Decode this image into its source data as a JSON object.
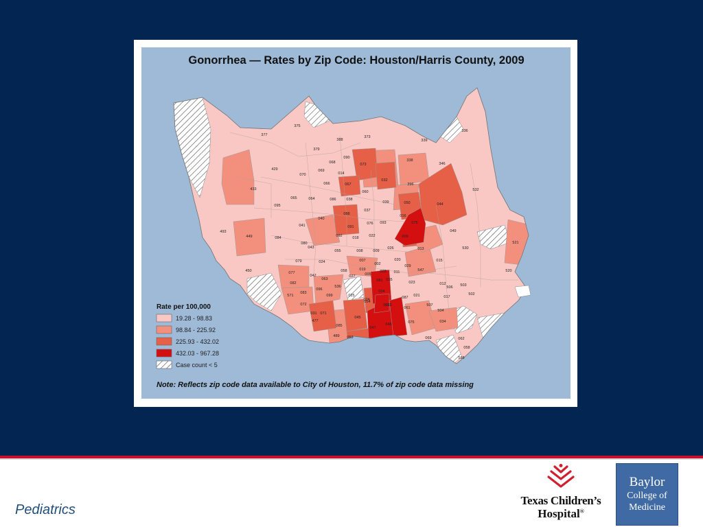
{
  "map": {
    "title": "Gonorrhea — Rates by Zip Code: Houston/Harris County, 2009",
    "note": "Note: Reflects zip code data available to City of Houston, 11.7% of zip code data missing",
    "legend": {
      "title": "Rate per 100,000",
      "items": [
        {
          "label": "19.28 - 98.83",
          "color": "#f9c8c4"
        },
        {
          "label": "98.84 - 225.92",
          "color": "#f3907d"
        },
        {
          "label": "225.93 - 432.02",
          "color": "#e65f47"
        },
        {
          "label": "432.03 - 967.28",
          "color": "#d40f10"
        },
        {
          "label": "Case count < 5",
          "color": "hatched"
        }
      ]
    },
    "colors": {
      "water": "#9ebad7",
      "class1": "#f9c8c4",
      "class2": "#f3907d",
      "class3": "#e65f47",
      "class4": "#d40f10"
    },
    "zip_labels": [
      "377",
      "375",
      "388",
      "373",
      "336",
      "339",
      "379",
      "090",
      "068",
      "073",
      "338",
      "346",
      "069",
      "014",
      "070",
      "429",
      "067",
      "066",
      "032",
      "396",
      "532",
      "433",
      "065",
      "064",
      "086",
      "038",
      "060",
      "039",
      "050",
      "044",
      "095",
      "040",
      "088",
      "037",
      "016",
      "091",
      "076",
      "093",
      "075",
      "041",
      "092",
      "018",
      "022",
      "009",
      "049",
      "493",
      "449",
      "084",
      "080",
      "043",
      "055",
      "008",
      "009",
      "026",
      "013",
      "530",
      "521",
      "079",
      "024",
      "007",
      "002",
      "020",
      "015",
      "450",
      "077",
      "042",
      "058",
      "019",
      "005",
      "003",
      "011",
      "029",
      "547",
      "520",
      "082",
      "063",
      "096",
      "027",
      "035",
      "023",
      "012",
      "506",
      "503",
      "536",
      "081",
      "004",
      "021",
      "017",
      "502",
      "571",
      "083",
      "072",
      "099",
      "074",
      "054",
      "001",
      "087",
      "507",
      "504",
      "031",
      "071",
      "025",
      "033",
      "061",
      "477",
      "085",
      "045",
      "048",
      "075",
      "034",
      "069",
      "062",
      "489",
      "053",
      "047",
      "058",
      "598"
    ]
  },
  "footer": {
    "section": "Pediatrics",
    "tch_line1": "Texas Children’s",
    "tch_line2": "Hospital",
    "tch_mark": "®",
    "bcm_line1": "Baylor",
    "bcm_line2": "College of",
    "bcm_line3": "Medicine"
  }
}
